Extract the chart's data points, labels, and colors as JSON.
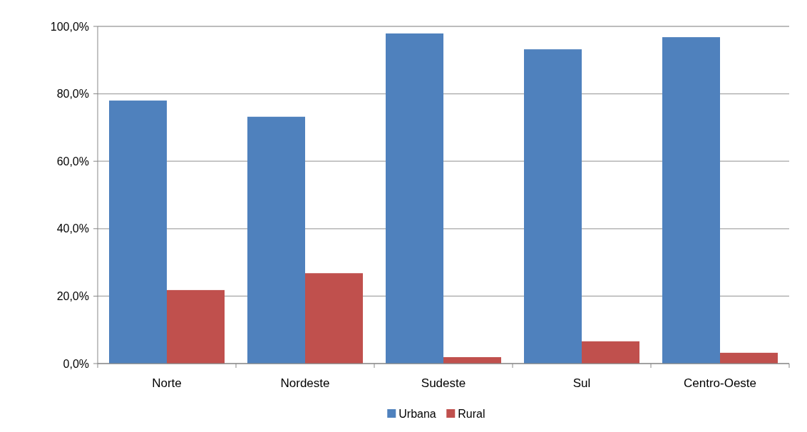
{
  "chart_data": {
    "type": "bar",
    "categories": [
      "Norte",
      "Nordeste",
      "Sudeste",
      "Sul",
      "Centro-Oeste"
    ],
    "series": [
      {
        "name": "Urbana",
        "color": "#4f81bd",
        "values": [
          78.0,
          73.2,
          97.9,
          93.2,
          96.8
        ]
      },
      {
        "name": "Rural",
        "color": "#c0504d",
        "values": [
          21.8,
          26.8,
          1.9,
          6.6,
          3.2
        ]
      }
    ],
    "ylim": [
      0,
      100
    ],
    "yticks": [
      {
        "value": 0,
        "label": "0,0%"
      },
      {
        "value": 20,
        "label": "20,0%"
      },
      {
        "value": 40,
        "label": "40,0%"
      },
      {
        "value": 60,
        "label": "60,0%"
      },
      {
        "value": 80,
        "label": "80,0%"
      },
      {
        "value": 100,
        "label": "100,0%"
      }
    ],
    "grid": "y",
    "legend": "bottom"
  }
}
